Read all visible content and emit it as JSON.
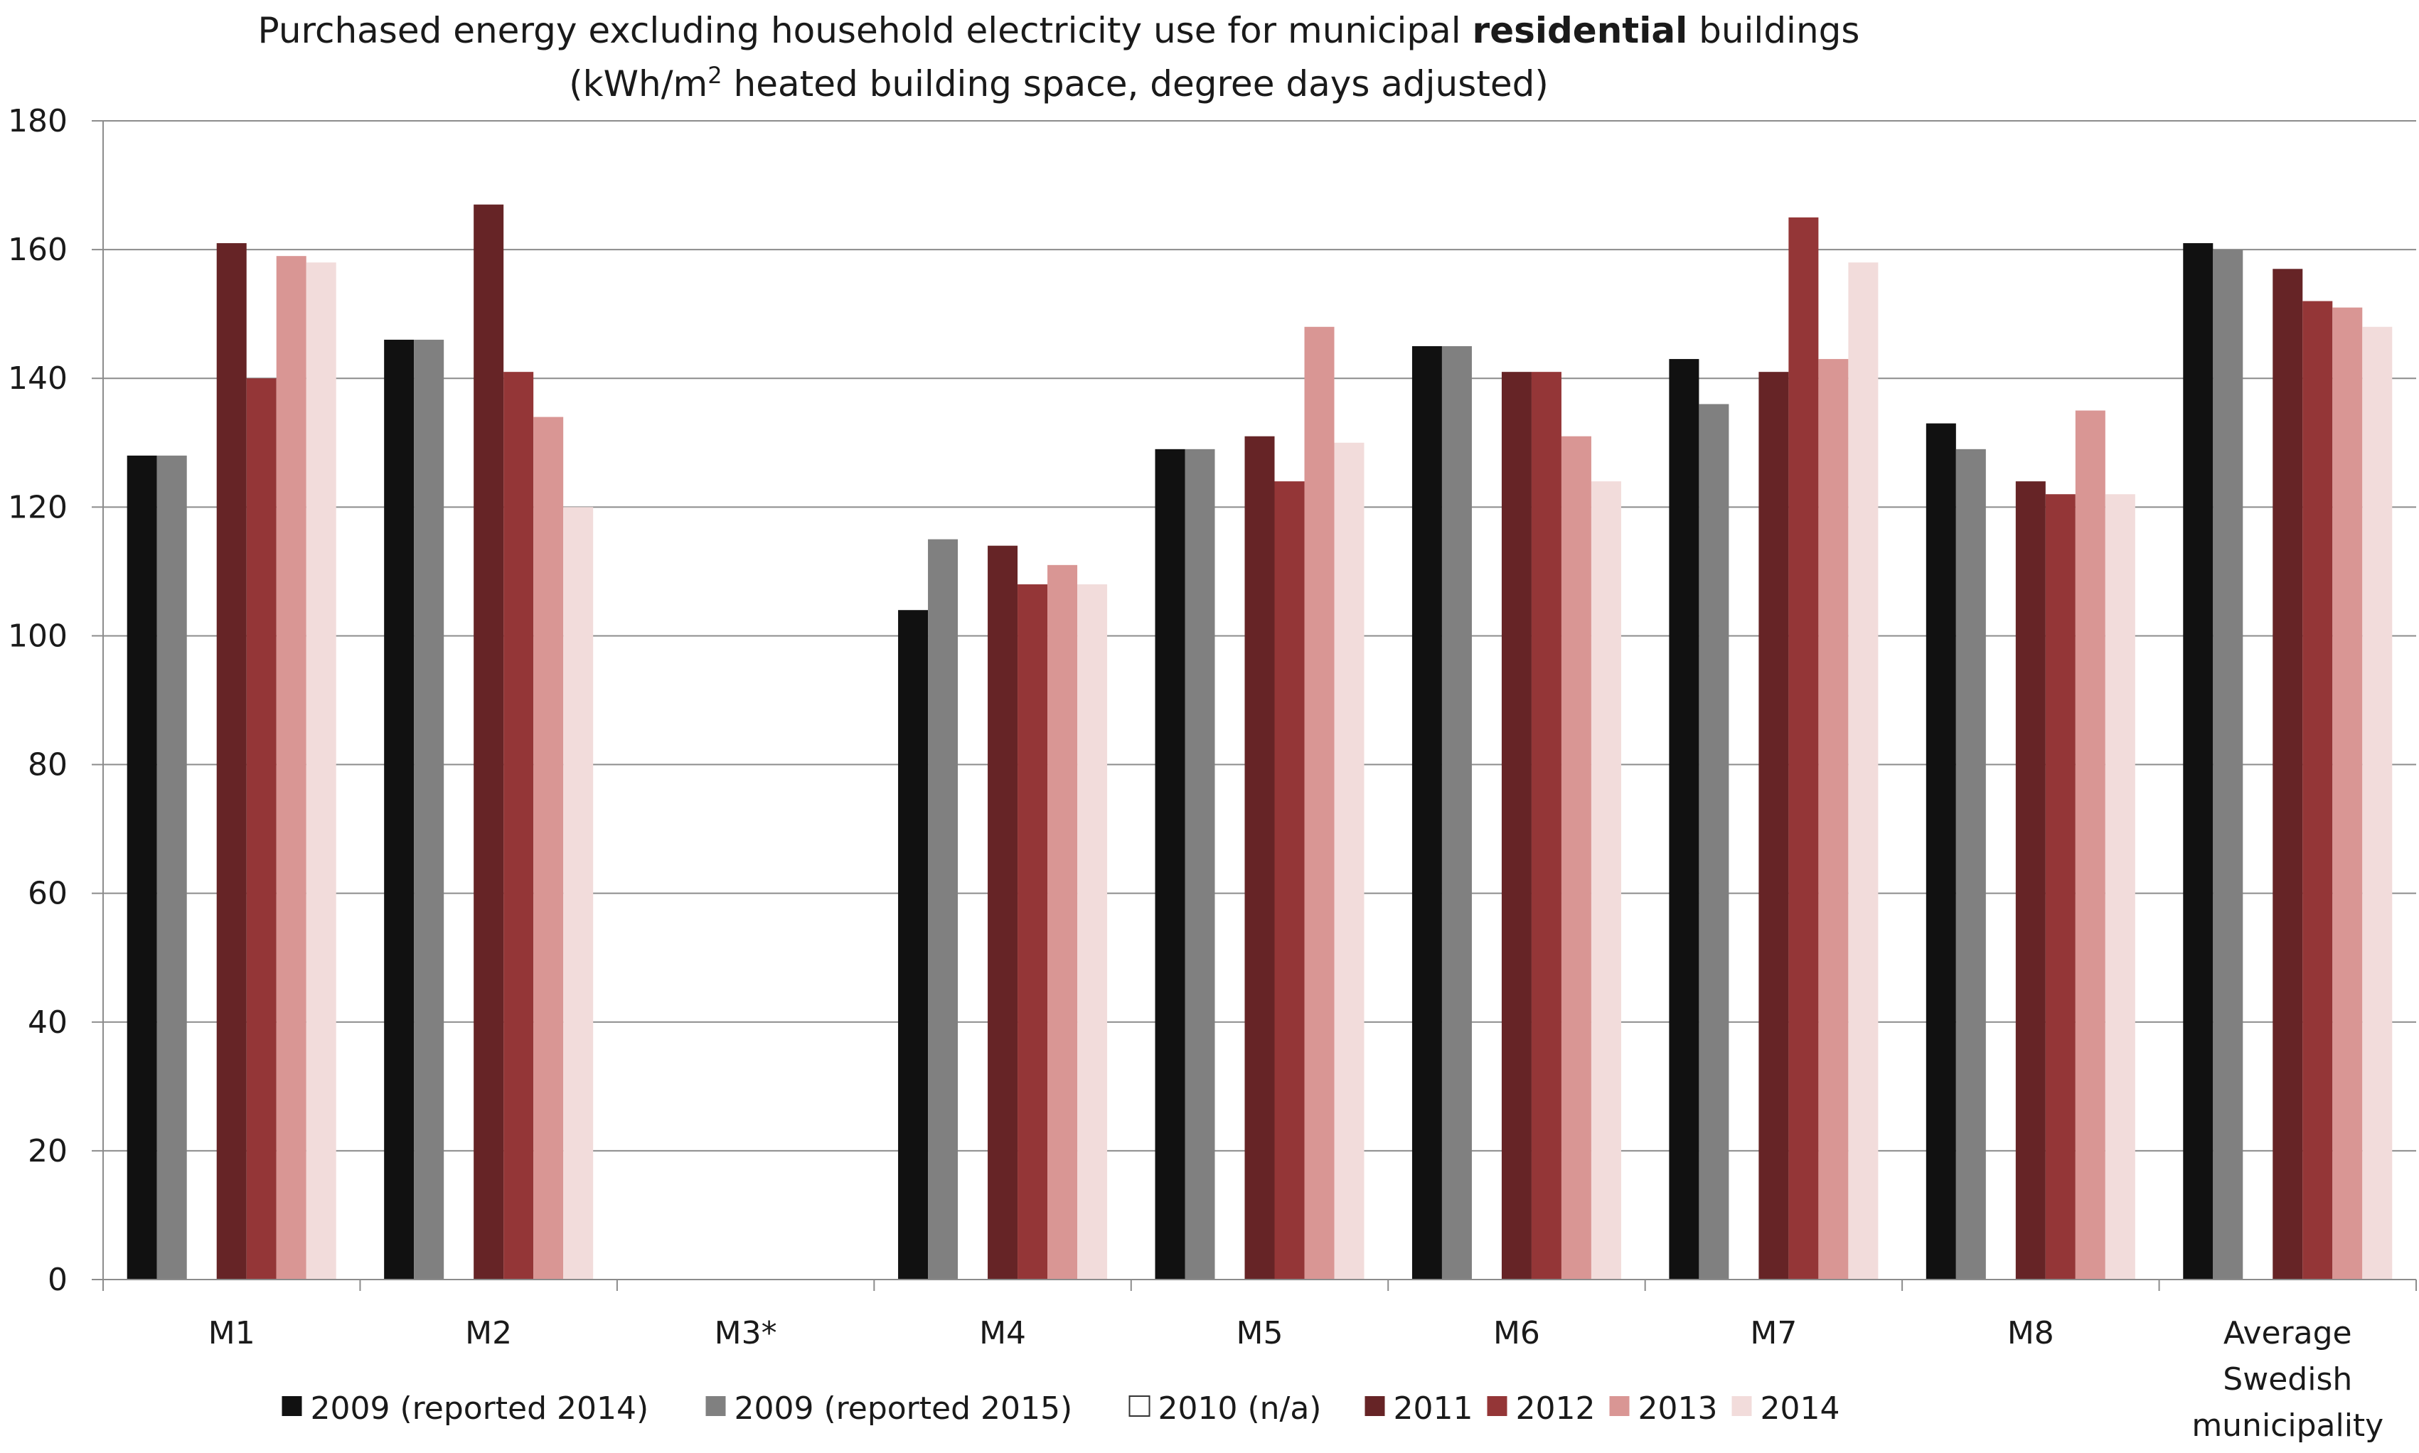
{
  "chart_data": {
    "type": "bar",
    "title_line1_prefix": "Purchased energy excluding household electricity use for municipal ",
    "title_line1_bold": "residential",
    "title_line1_suffix": " buildings",
    "title_line2_prefix": "(kWh/m",
    "title_line2_sup": "2",
    "title_line2_suffix": " heated building space, degree days adjusted)",
    "xlabel": "",
    "ylabel": "",
    "ylim": [
      0,
      180
    ],
    "y_ticks": [
      "0",
      "20",
      "40",
      "60",
      "80",
      "100",
      "120",
      "140",
      "160",
      "180"
    ],
    "grid": true,
    "legend_position": "bottom",
    "categories": [
      [
        "M1"
      ],
      [
        "M2"
      ],
      [
        "M3*"
      ],
      [
        "M4"
      ],
      [
        "M5"
      ],
      [
        "M6"
      ],
      [
        "M7"
      ],
      [
        "M8"
      ],
      [
        "Average",
        "Swedish",
        "municipality"
      ]
    ],
    "series": [
      {
        "name": "2009 (reported 2014)",
        "color": "#111111",
        "values": [
          128,
          146,
          null,
          104,
          129,
          145,
          143,
          133,
          161
        ]
      },
      {
        "name": "2009 (reported 2015)",
        "color": "#808080",
        "values": [
          128,
          146,
          null,
          115,
          129,
          145,
          136,
          129,
          160
        ]
      },
      {
        "name": "2010 (n/a)",
        "color": "#ffffff",
        "values": [
          null,
          null,
          null,
          null,
          null,
          null,
          null,
          null,
          null
        ]
      },
      {
        "name": "2011",
        "color": "#662426",
        "values": [
          161,
          167,
          null,
          114,
          131,
          141,
          141,
          124,
          157
        ]
      },
      {
        "name": "2012",
        "color": "#943637",
        "values": [
          140,
          141,
          null,
          108,
          124,
          141,
          165,
          122,
          152
        ]
      },
      {
        "name": "2013",
        "color": "#d99694",
        "values": [
          159,
          134,
          null,
          111,
          148,
          131,
          143,
          135,
          151
        ]
      },
      {
        "name": "2014",
        "color": "#f2dcdb",
        "values": [
          158,
          120,
          null,
          108,
          130,
          124,
          158,
          122,
          148
        ]
      }
    ]
  }
}
